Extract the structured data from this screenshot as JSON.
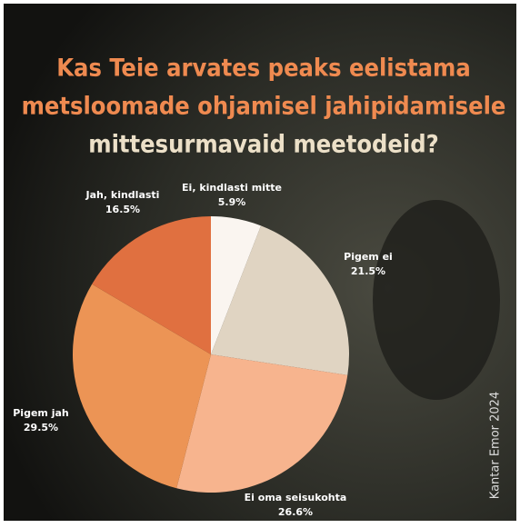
{
  "chart_data": {
    "type": "pie",
    "title": [
      "Kas Teie arvates peaks eelistama",
      "metsloomade ohjamisel jahipidamisele",
      "mittesurmavaid meetodeid?"
    ],
    "categories": [
      "Ei, kindlasti mitte",
      "Pigem ei",
      "Ei oma seisukohta",
      "Pigem jah",
      "Jah, kindlasti"
    ],
    "values": [
      5.9,
      21.5,
      26.6,
      29.5,
      16.5
    ],
    "value_labels": [
      "5.9%",
      "21.5%",
      "26.6%",
      "29.5%",
      "16.5%"
    ],
    "colors": [
      "#faf5f0",
      "#e0d4c2",
      "#f7b48e",
      "#ec9455",
      "#e07040"
    ],
    "source": "Kantar Emor 2024"
  }
}
